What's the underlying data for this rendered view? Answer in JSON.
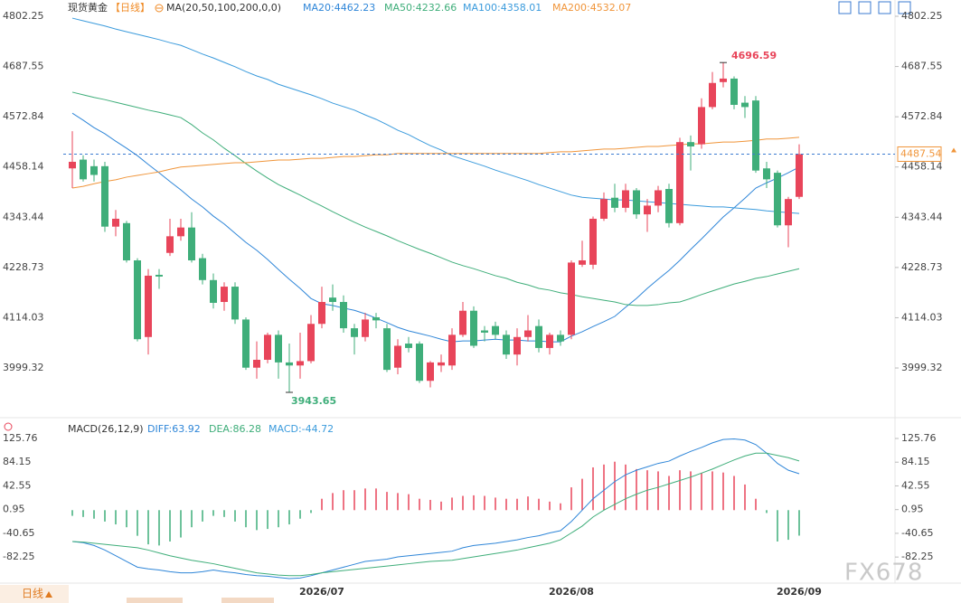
{
  "chart_data": [
    {
      "type": "candlestick",
      "title": "现货黄金",
      "period": "【日线】",
      "indicator": "MA(20,50,100,200,0,0)",
      "up_color": "#e8455a",
      "down_color": "#3fae7a",
      "ylim": [
        3890,
        4839.4
      ],
      "yticks": [
        4802.25,
        4687.55,
        4572.84,
        4458.14,
        4343.44,
        4228.73,
        4114.03,
        3999.32
      ],
      "categories": [
        null,
        null,
        null,
        null,
        null,
        null,
        null,
        null,
        null,
        null,
        null,
        null,
        null,
        null,
        null,
        null,
        null,
        null,
        null,
        null,
        null,
        null,
        null,
        "2026/07",
        null,
        null,
        null,
        null,
        null,
        null,
        null,
        null,
        null,
        null,
        null,
        null,
        null,
        null,
        null,
        null,
        null,
        null,
        null,
        null,
        null,
        null,
        "2026/08",
        null,
        null,
        null,
        null,
        null,
        null,
        null,
        null,
        null,
        null,
        null,
        null,
        null,
        null,
        null,
        null,
        null,
        null,
        null,
        null,
        "2026/09"
      ],
      "candles": [
        [
          4455,
          4540,
          4410,
          4470
        ],
        [
          4475,
          4485,
          4425,
          4430
        ],
        [
          4460,
          4475,
          4425,
          4440
        ],
        [
          4460,
          4470,
          4310,
          4322
        ],
        [
          4322,
          4360,
          4300,
          4340
        ],
        [
          4330,
          4335,
          4240,
          4245
        ],
        [
          4245,
          4250,
          4060,
          4065
        ],
        [
          4070,
          4225,
          4030,
          4210
        ],
        [
          4212,
          4225,
          4180,
          4208
        ],
        [
          4262,
          4340,
          4255,
          4300
        ],
        [
          4300,
          4340,
          4290,
          4320
        ],
        [
          4320,
          4355,
          4240,
          4245
        ],
        [
          4250,
          4260,
          4190,
          4200
        ],
        [
          4200,
          4215,
          4135,
          4148
        ],
        [
          4150,
          4195,
          4130,
          4185
        ],
        [
          4185,
          4195,
          4100,
          4110
        ],
        [
          4110,
          4115,
          3995,
          4000
        ],
        [
          4000,
          4060,
          3975,
          4018
        ],
        [
          4018,
          4080,
          4010,
          4075
        ],
        [
          4075,
          4085,
          3975,
          4012
        ],
        [
          4012,
          4055,
          3943.65,
          4005
        ],
        [
          4005,
          4080,
          3975,
          4015
        ],
        [
          4015,
          4120,
          4010,
          4100
        ],
        [
          4100,
          4185,
          4090,
          4150
        ],
        [
          4160,
          4190,
          4130,
          4150
        ],
        [
          4150,
          4165,
          4080,
          4090
        ],
        [
          4090,
          4100,
          4030,
          4070
        ],
        [
          4070,
          4125,
          4060,
          4110
        ],
        [
          4115,
          4125,
          4090,
          4108
        ],
        [
          4090,
          4100,
          3990,
          3995
        ],
        [
          4000,
          4065,
          3985,
          4050
        ],
        [
          4055,
          4070,
          4035,
          4045
        ],
        [
          4055,
          4060,
          3965,
          3970
        ],
        [
          3970,
          4015,
          3955,
          4012
        ],
        [
          4005,
          4030,
          3990,
          4012
        ],
        [
          4005,
          4090,
          3995,
          4075
        ],
        [
          4075,
          4150,
          4070,
          4130
        ],
        [
          4130,
          4140,
          4045,
          4050
        ],
        [
          4085,
          4095,
          4060,
          4080
        ],
        [
          4095,
          4105,
          4065,
          4075
        ],
        [
          4075,
          4085,
          4020,
          4030
        ],
        [
          4030,
          4090,
          4005,
          4070
        ],
        [
          4070,
          4120,
          4060,
          4085
        ],
        [
          4095,
          4110,
          4035,
          4045
        ],
        [
          4045,
          4080,
          4030,
          4075
        ],
        [
          4075,
          4085,
          4050,
          4060
        ],
        [
          4075,
          4245,
          4065,
          4240
        ],
        [
          4235,
          4290,
          4230,
          4245
        ],
        [
          4235,
          4345,
          4225,
          4340
        ],
        [
          4340,
          4400,
          4335,
          4385
        ],
        [
          4388,
          4420,
          4355,
          4365
        ],
        [
          4365,
          4420,
          4355,
          4405
        ],
        [
          4405,
          4410,
          4340,
          4350
        ],
        [
          4350,
          4385,
          4310,
          4370
        ],
        [
          4370,
          4415,
          4355,
          4405
        ],
        [
          4408,
          4420,
          4320,
          4330
        ],
        [
          4330,
          4525,
          4325,
          4515
        ],
        [
          4515,
          4530,
          4450,
          4505
        ],
        [
          4510,
          4615,
          4500,
          4595
        ],
        [
          4595,
          4675,
          4590,
          4650
        ],
        [
          4652,
          4696.59,
          4640,
          4660
        ],
        [
          4660,
          4665,
          4590,
          4600
        ],
        [
          4605,
          4620,
          4570,
          4595
        ],
        [
          4610,
          4620,
          4445,
          4450
        ],
        [
          4455,
          4470,
          4410,
          4430
        ],
        [
          4445,
          4450,
          4320,
          4325
        ],
        [
          4325,
          4390,
          4275,
          4385
        ],
        [
          4390,
          4510,
          4385,
          4487.54
        ]
      ],
      "series": [
        {
          "name": "MA20:4462.23",
          "color": "#2f86d8",
          "values": [
            4581,
            4565,
            4548,
            4534,
            4517,
            4501,
            4484,
            4464,
            4445,
            4425,
            4406,
            4385,
            4367,
            4346,
            4328,
            4307,
            4286,
            4268,
            4247,
            4224,
            4202,
            4181,
            4158,
            4146,
            4142,
            4136,
            4131,
            4123,
            4113,
            4103,
            4092,
            4084,
            4078,
            4072,
            4065,
            4059,
            4061,
            4061,
            4063,
            4065,
            4063,
            4063,
            4061,
            4061,
            4059,
            4059,
            4072,
            4082,
            4094,
            4105,
            4117,
            4138,
            4158,
            4181,
            4202,
            4222,
            4245,
            4270,
            4294,
            4319,
            4344,
            4365,
            4387,
            4410,
            4422,
            4433,
            4445,
            4458
          ]
        },
        {
          "name": "MA50:4232.66",
          "color": "#3fae7a",
          "values": [
            4629,
            4623,
            4617,
            4612,
            4606,
            4600,
            4594,
            4588,
            4583,
            4577,
            4571,
            4555,
            4536,
            4520,
            4501,
            4484,
            4466,
            4449,
            4433,
            4418,
            4406,
            4394,
            4381,
            4369,
            4356,
            4344,
            4332,
            4321,
            4311,
            4301,
            4290,
            4280,
            4270,
            4261,
            4251,
            4241,
            4233,
            4226,
            4218,
            4210,
            4204,
            4195,
            4189,
            4181,
            4177,
            4171,
            4167,
            4162,
            4158,
            4154,
            4150,
            4144,
            4142,
            4142,
            4144,
            4148,
            4150,
            4158,
            4167,
            4175,
            4183,
            4191,
            4197,
            4204,
            4208,
            4214,
            4220,
            4226
          ]
        },
        {
          "name": "MA100:4358.01",
          "color": "#3b9bdc",
          "values": [
            4798,
            4792,
            4786,
            4780,
            4773,
            4767,
            4761,
            4755,
            4749,
            4742,
            4736,
            4726,
            4716,
            4707,
            4697,
            4687,
            4676,
            4666,
            4658,
            4647,
            4639,
            4631,
            4623,
            4614,
            4604,
            4596,
            4588,
            4577,
            4567,
            4555,
            4542,
            4532,
            4519,
            4507,
            4497,
            4484,
            4476,
            4468,
            4460,
            4451,
            4443,
            4435,
            4427,
            4418,
            4410,
            4402,
            4394,
            4389,
            4387,
            4385,
            4383,
            4383,
            4381,
            4379,
            4377,
            4375,
            4373,
            4371,
            4369,
            4367,
            4367,
            4365,
            4363,
            4361,
            4358,
            4356,
            4354,
            4352
          ]
        },
        {
          "name": "MA200:4532.07",
          "color": "#f0953a",
          "values": [
            4410,
            4414,
            4420,
            4425,
            4429,
            4435,
            4439,
            4443,
            4447,
            4453,
            4458,
            4460,
            4462,
            4464,
            4466,
            4468,
            4468,
            4470,
            4472,
            4474,
            4474,
            4476,
            4478,
            4478,
            4480,
            4482,
            4482,
            4484,
            4486,
            4486,
            4489,
            4489,
            4489,
            4489,
            4489,
            4489,
            4489,
            4489,
            4489,
            4489,
            4489,
            4489,
            4489,
            4489,
            4491,
            4493,
            4493,
            4495,
            4497,
            4499,
            4499,
            4501,
            4503,
            4505,
            4505,
            4507,
            4509,
            4511,
            4511,
            4513,
            4515,
            4515,
            4517,
            4519,
            4522,
            4522,
            4524,
            4526
          ]
        }
      ]
    },
    {
      "type": "macd",
      "title": "MACD(26,12,9)",
      "ylim": [
        -128,
        152.7
      ],
      "yticks": [
        125.76,
        84.15,
        42.55,
        0.95,
        -40.65,
        -82.25
      ],
      "up_color": "#e8455a",
      "down_color": "#3fae7a",
      "histogram": {
        "name": "MACD:-44.72",
        "color": "#3b9bdc",
        "values": [
          -10,
          -12,
          -15,
          -20,
          -25,
          -30,
          -45,
          -60,
          -62,
          -55,
          -48,
          -30,
          -20,
          -10,
          -12,
          -20,
          -30,
          -35,
          -33,
          -30,
          -25,
          -15,
          -5,
          20,
          30,
          35,
          35,
          38,
          38,
          32,
          30,
          28,
          20,
          18,
          15,
          22,
          25,
          26,
          25,
          22,
          20,
          20,
          24,
          20,
          15,
          12,
          40,
          55,
          75,
          80,
          85,
          80,
          72,
          70,
          68,
          60,
          70,
          68,
          65,
          68,
          66,
          60,
          45,
          20,
          -5,
          -55,
          -52,
          -44.72
        ]
      },
      "series": [
        {
          "name": "DIFF:63.92",
          "color": "#2f86d8",
          "values": [
            -55,
            -57,
            -62,
            -70,
            -80,
            -90,
            -100,
            -103,
            -105,
            -108,
            -110,
            -110,
            -108,
            -105,
            -108,
            -110,
            -113,
            -115,
            -116,
            -118,
            -120,
            -119,
            -115,
            -110,
            -105,
            -100,
            -95,
            -90,
            -88,
            -86,
            -82,
            -80,
            -78,
            -76,
            -74,
            -72,
            -66,
            -62,
            -60,
            -58,
            -55,
            -52,
            -48,
            -45,
            -40,
            -36,
            -20,
            0,
            20,
            35,
            50,
            62,
            70,
            76,
            82,
            86,
            95,
            103,
            110,
            118,
            124,
            125,
            123,
            115,
            100,
            82,
            70,
            63.92
          ]
        },
        {
          "name": "DEA:86.28",
          "color": "#3fae7a",
          "values": [
            -55,
            -56,
            -58,
            -60,
            -62,
            -64,
            -66,
            -70,
            -75,
            -80,
            -84,
            -88,
            -91,
            -94,
            -98,
            -102,
            -106,
            -110,
            -112,
            -114,
            -115,
            -115,
            -113,
            -110,
            -108,
            -106,
            -104,
            -102,
            -100,
            -98,
            -96,
            -94,
            -92,
            -90,
            -89,
            -88,
            -85,
            -82,
            -79,
            -76,
            -73,
            -70,
            -66,
            -62,
            -58,
            -52,
            -40,
            -28,
            -12,
            0,
            10,
            20,
            28,
            35,
            40,
            46,
            52,
            58,
            65,
            72,
            80,
            88,
            95,
            100,
            100,
            96,
            92,
            86.28
          ]
        }
      ]
    }
  ],
  "footer": {
    "button": "日线",
    "watermark": "FX678"
  }
}
